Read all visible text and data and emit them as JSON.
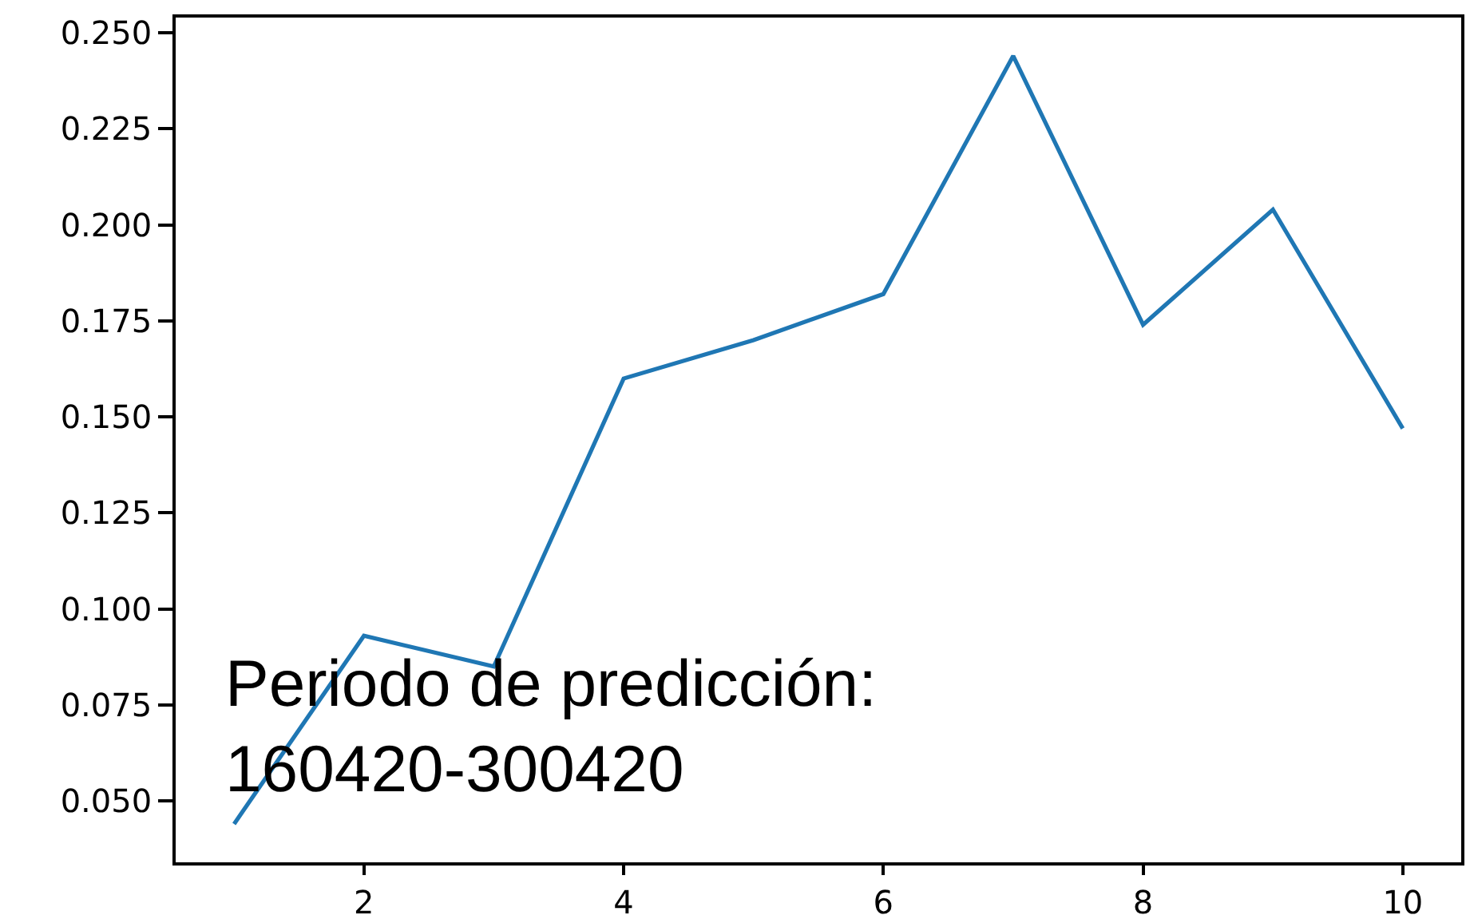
{
  "chart_data": {
    "type": "line",
    "x": [
      1,
      2,
      3,
      4,
      5,
      6,
      7,
      8,
      9,
      10
    ],
    "series": [
      {
        "color": "#1f77b4",
        "values": [
          0.044,
          0.093,
          0.085,
          0.16,
          0.17,
          0.182,
          0.244,
          0.174,
          0.204,
          0.147
        ]
      }
    ],
    "xlim": [
      0.55,
      10.45
    ],
    "ylim": [
      0.034,
      0.254
    ],
    "xticks": [
      2,
      4,
      6,
      8,
      10
    ],
    "yticks": [
      {
        "value": 0.05,
        "label": "0.050"
      },
      {
        "value": 0.075,
        "label": "0.075"
      },
      {
        "value": 0.1,
        "label": "0.100"
      },
      {
        "value": 0.125,
        "label": "0.125"
      },
      {
        "value": 0.15,
        "label": "0.150"
      },
      {
        "value": 0.175,
        "label": "0.175"
      },
      {
        "value": 0.2,
        "label": "0.200"
      },
      {
        "value": 0.225,
        "label": "0.225"
      },
      {
        "value": 0.25,
        "label": "0.250"
      }
    ],
    "annotations": [
      "Periodo de predicción:\n160420-300420"
    ]
  }
}
